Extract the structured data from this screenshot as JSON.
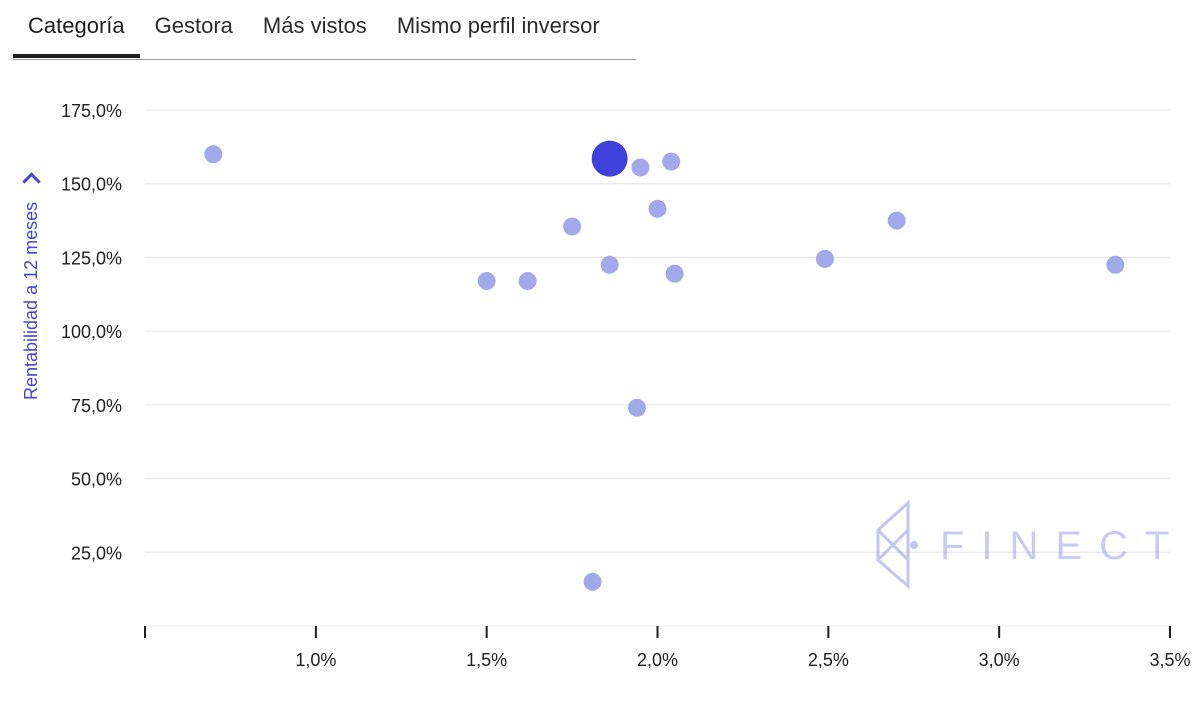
{
  "tabs": [
    {
      "label": "Categoría",
      "active": true
    },
    {
      "label": "Gestora",
      "active": false
    },
    {
      "label": "Más vistos",
      "active": false
    },
    {
      "label": "Mismo perfil inversor",
      "active": false
    }
  ],
  "watermark": {
    "text": "FINECT"
  },
  "colors": {
    "point": "#a1a9ea",
    "highlight": "#3e41da",
    "axis_label": "#4643d6",
    "grid": "#e2e2e2"
  },
  "chart_data": {
    "type": "scatter",
    "ylabel": "Rentabilidad a 12 meses",
    "xlabel": "",
    "xlim": [
      0.5,
      3.5
    ],
    "ylim": [
      0,
      175
    ],
    "x_ticks": [
      1.0,
      1.5,
      2.0,
      2.5,
      3.0,
      3.5
    ],
    "x_tick_labels": [
      "1,0%",
      "1,5%",
      "2,0%",
      "2,5%",
      "3,0%",
      "3,5%"
    ],
    "y_ticks": [
      25,
      50,
      75,
      100,
      125,
      150,
      175
    ],
    "y_tick_labels": [
      "25,0%",
      "50,0%",
      "75,0%",
      "100,0%",
      "125,0%",
      "150,0%",
      "175,0%"
    ],
    "grid": "horizontal",
    "points": [
      {
        "x": 0.7,
        "y": 160.0
      },
      {
        "x": 1.5,
        "y": 117.0
      },
      {
        "x": 1.62,
        "y": 117.0
      },
      {
        "x": 1.75,
        "y": 135.5
      },
      {
        "x": 1.81,
        "y": 15.0
      },
      {
        "x": 1.86,
        "y": 122.5
      },
      {
        "x": 1.94,
        "y": 74.0
      },
      {
        "x": 1.95,
        "y": 155.5
      },
      {
        "x": 2.0,
        "y": 141.5
      },
      {
        "x": 2.04,
        "y": 157.5
      },
      {
        "x": 2.05,
        "y": 119.5
      },
      {
        "x": 2.49,
        "y": 124.5
      },
      {
        "x": 2.7,
        "y": 137.5
      },
      {
        "x": 3.34,
        "y": 122.5
      }
    ],
    "highlight": {
      "x": 1.86,
      "y": 158.5
    }
  }
}
